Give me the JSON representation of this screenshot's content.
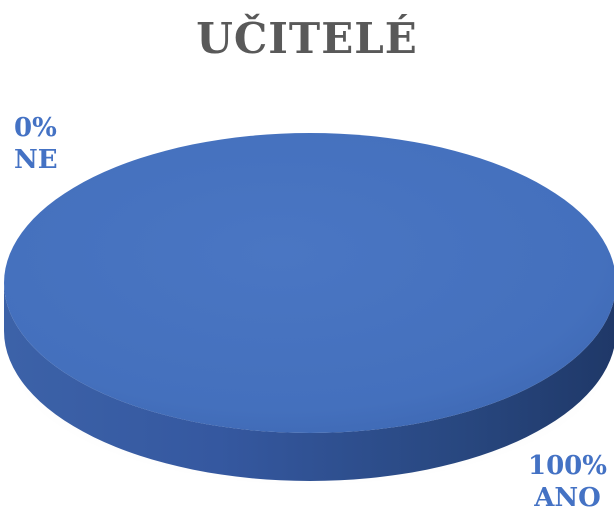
{
  "chart_data": {
    "type": "pie",
    "title": "UČITELÉ",
    "categories": [
      "NE",
      "ANO"
    ],
    "values": [
      0,
      100
    ],
    "value_labels": [
      "0%",
      "100%"
    ],
    "colors": {
      "slice": "#4472c4",
      "slice_top_light": "#4a76c3",
      "slice_top_dark": "#3a63ad",
      "slice_side_light": "#3c62a8",
      "slice_side_dark": "#1f3868",
      "label_text": "#4472c4",
      "title_text": "#595959"
    },
    "style": "3d",
    "legend": "none"
  }
}
